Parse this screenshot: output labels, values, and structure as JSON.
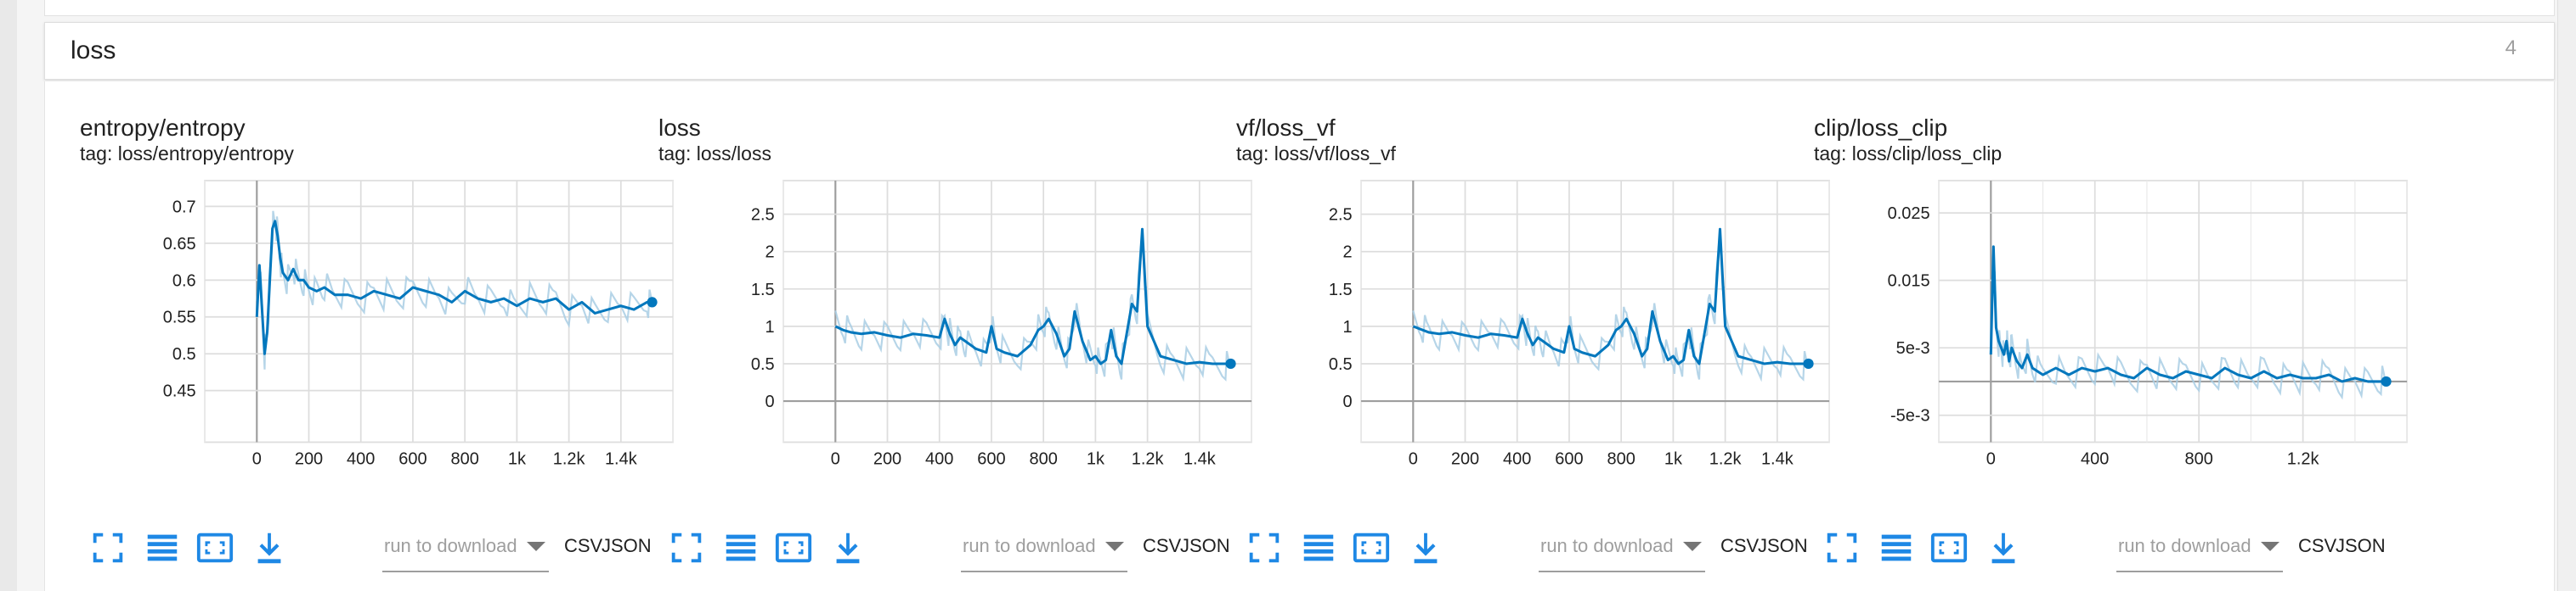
{
  "section": {
    "title": "loss",
    "count": "4"
  },
  "toolbar": {
    "run_placeholder": "run to download",
    "csv_label": "CSV",
    "json_label": "JSON"
  },
  "colors": {
    "accent": "#0277bd",
    "smoothed_line": "#0277bd",
    "raw_line": "#a9cee4",
    "icon_blue": "#1e88e5",
    "grid": "#dddddd"
  },
  "icons": [
    "fit-domain-icon",
    "log-scale-icon",
    "toggle-expand-icon",
    "download-icon"
  ],
  "chart_data": [
    {
      "type": "line",
      "title": "entropy/entropy",
      "tag": "tag: loss/entropy/entropy",
      "xlim": [
        -200,
        1600
      ],
      "ylim": [
        0.38,
        0.735
      ],
      "xticks": [
        0,
        200,
        400,
        600,
        800,
        1000,
        1200,
        1400
      ],
      "xtick_labels": [
        "0",
        "200",
        "400",
        "600",
        "800",
        "1k",
        "1.2k",
        "1.4k"
      ],
      "yticks": [
        0.45,
        0.5,
        0.55,
        0.6,
        0.65,
        0.7
      ],
      "ytick_labels": [
        "0.45",
        "0.5",
        "0.55",
        "0.6",
        "0.65",
        "0.7"
      ],
      "series": [
        {
          "x": [
            0,
            10,
            20,
            30,
            40,
            50,
            60,
            70,
            80,
            90,
            100,
            120,
            140,
            160,
            180,
            200,
            230,
            260,
            300,
            350,
            400,
            450,
            500,
            550,
            600,
            650,
            700,
            750,
            800,
            850,
            900,
            950,
            1000,
            1050,
            1100,
            1150,
            1200,
            1250,
            1300,
            1350,
            1400,
            1450,
            1500,
            1520
          ],
          "y": [
            0.55,
            0.62,
            0.56,
            0.5,
            0.53,
            0.6,
            0.67,
            0.68,
            0.66,
            0.63,
            0.61,
            0.6,
            0.615,
            0.6,
            0.6,
            0.59,
            0.585,
            0.59,
            0.58,
            0.58,
            0.575,
            0.585,
            0.58,
            0.575,
            0.59,
            0.585,
            0.58,
            0.57,
            0.585,
            0.575,
            0.57,
            0.575,
            0.565,
            0.575,
            0.57,
            0.575,
            0.56,
            0.57,
            0.555,
            0.56,
            0.565,
            0.56,
            0.57,
            0.57
          ]
        }
      ]
    },
    {
      "type": "line",
      "title": "loss",
      "tag": "tag: loss/loss",
      "xlim": [
        -200,
        1600
      ],
      "ylim": [
        -0.55,
        2.95
      ],
      "xticks": [
        0,
        200,
        400,
        600,
        800,
        1000,
        1200,
        1400
      ],
      "xtick_labels": [
        "0",
        "200",
        "400",
        "600",
        "800",
        "1k",
        "1.2k",
        "1.4k"
      ],
      "yticks": [
        0,
        0.5,
        1,
        1.5,
        2,
        2.5
      ],
      "ytick_labels": [
        "0",
        "0.5",
        "1",
        "1.5",
        "2",
        "2.5"
      ],
      "series": [
        {
          "x": [
            0,
            30,
            60,
            100,
            150,
            200,
            250,
            300,
            350,
            400,
            420,
            440,
            460,
            480,
            500,
            540,
            580,
            600,
            620,
            650,
            700,
            750,
            780,
            800,
            820,
            850,
            880,
            900,
            920,
            950,
            980,
            1000,
            1020,
            1040,
            1060,
            1080,
            1100,
            1120,
            1140,
            1160,
            1180,
            1200,
            1250,
            1300,
            1350,
            1400,
            1450,
            1500,
            1520
          ],
          "y": [
            1.0,
            0.95,
            0.92,
            0.9,
            0.92,
            0.88,
            0.85,
            0.9,
            0.88,
            0.85,
            1.1,
            0.9,
            0.75,
            0.85,
            0.8,
            0.7,
            0.65,
            1.0,
            0.7,
            0.65,
            0.6,
            0.75,
            0.95,
            1.0,
            1.1,
            0.9,
            0.6,
            0.7,
            1.2,
            0.8,
            0.55,
            0.6,
            0.5,
            0.55,
            0.95,
            0.6,
            0.5,
            0.9,
            1.3,
            1.2,
            2.3,
            1.0,
            0.6,
            0.55,
            0.5,
            0.52,
            0.5,
            0.5,
            0.5
          ]
        }
      ]
    },
    {
      "type": "line",
      "title": "vf/loss_vf",
      "tag": "tag: loss/vf/loss_vf",
      "xlim": [
        -200,
        1600
      ],
      "ylim": [
        -0.55,
        2.95
      ],
      "xticks": [
        0,
        200,
        400,
        600,
        800,
        1000,
        1200,
        1400
      ],
      "xtick_labels": [
        "0",
        "200",
        "400",
        "600",
        "800",
        "1k",
        "1.2k",
        "1.4k"
      ],
      "yticks": [
        0,
        0.5,
        1,
        1.5,
        2,
        2.5
      ],
      "ytick_labels": [
        "0",
        "0.5",
        "1",
        "1.5",
        "2",
        "2.5"
      ],
      "series": [
        {
          "x": [
            0,
            30,
            60,
            100,
            150,
            200,
            250,
            300,
            350,
            400,
            420,
            440,
            460,
            480,
            500,
            540,
            580,
            600,
            620,
            650,
            700,
            750,
            780,
            800,
            820,
            850,
            880,
            900,
            920,
            950,
            980,
            1000,
            1020,
            1040,
            1060,
            1080,
            1100,
            1120,
            1140,
            1160,
            1180,
            1200,
            1250,
            1300,
            1350,
            1400,
            1450,
            1500,
            1520
          ],
          "y": [
            1.0,
            0.96,
            0.92,
            0.9,
            0.92,
            0.88,
            0.85,
            0.9,
            0.88,
            0.85,
            1.1,
            0.9,
            0.75,
            0.85,
            0.8,
            0.7,
            0.65,
            1.0,
            0.7,
            0.65,
            0.6,
            0.75,
            0.95,
            1.0,
            1.1,
            0.9,
            0.6,
            0.7,
            1.2,
            0.8,
            0.55,
            0.6,
            0.5,
            0.55,
            0.95,
            0.6,
            0.5,
            0.9,
            1.3,
            1.2,
            2.3,
            1.0,
            0.6,
            0.55,
            0.5,
            0.52,
            0.5,
            0.5,
            0.5
          ]
        }
      ]
    },
    {
      "type": "line",
      "title": "clip/loss_clip",
      "tag": "tag: loss/clip/loss_clip",
      "xlim": [
        -200,
        1600
      ],
      "ylim": [
        -0.009,
        0.0298
      ],
      "xticks": [
        0,
        400,
        800,
        1200
      ],
      "xtick_labels": [
        "0",
        "400",
        "800",
        "1.2k"
      ],
      "yticks": [
        -0.005,
        0.005,
        0.015,
        0.025
      ],
      "ytick_labels": [
        "-5e-3",
        "5e-3",
        "0.015",
        "0.025"
      ],
      "series": [
        {
          "x": [
            0,
            10,
            20,
            30,
            40,
            50,
            60,
            70,
            80,
            100,
            120,
            140,
            160,
            200,
            250,
            300,
            350,
            400,
            450,
            500,
            550,
            600,
            650,
            700,
            750,
            800,
            850,
            900,
            950,
            1000,
            1050,
            1100,
            1150,
            1200,
            1250,
            1300,
            1350,
            1400,
            1450,
            1500,
            1520
          ],
          "y": [
            0.004,
            0.02,
            0.008,
            0.006,
            0.005,
            0.004,
            0.006,
            0.003,
            0.005,
            0.003,
            0.002,
            0.004,
            0.002,
            0.001,
            0.002,
            0.001,
            0.002,
            0.0015,
            0.002,
            0.001,
            0.0005,
            0.002,
            0.001,
            0.0005,
            0.0015,
            0.001,
            0.0005,
            0.002,
            0.001,
            0.0005,
            0.0015,
            0.0005,
            0.001,
            0.0005,
            0.0005,
            0.001,
            0.0,
            0.0005,
            0.0,
            0.0,
            0.0
          ]
        }
      ]
    }
  ]
}
